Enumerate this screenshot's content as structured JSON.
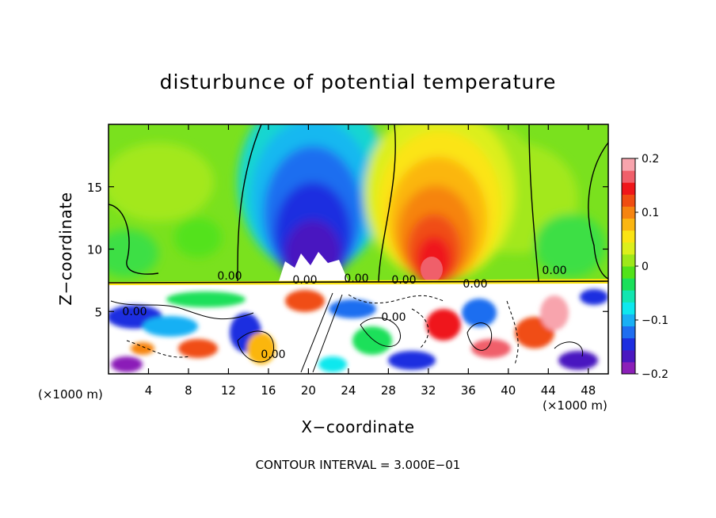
{
  "chart_data": {
    "type": "heatmap",
    "title": "disturbunce of potential temperature",
    "xlabel": "X−coordinate",
    "ylabel": "Z−coordinate",
    "x_unit": "(×1000 m)",
    "x_unit_right": "(×1000 m)",
    "footer": "CONTOUR INTERVAL = 3.000E−01",
    "xlim": [
      0,
      50
    ],
    "ylim": [
      0,
      20
    ],
    "xticks": [
      4,
      8,
      12,
      16,
      20,
      24,
      28,
      32,
      36,
      40,
      44,
      48
    ],
    "xtick_labels": [
      "4",
      "8",
      "12",
      "16",
      "20",
      "24",
      "28",
      "32",
      "36",
      "40",
      "44",
      "48"
    ],
    "yticks": [
      5,
      10,
      15
    ],
    "ytick_labels": [
      "5",
      "10",
      "15"
    ],
    "colorbar": {
      "range": [
        -0.2,
        0.2
      ],
      "tick_values": [
        0.2,
        0.1,
        0,
        -0.1,
        -0.2
      ],
      "tick_labels": [
        "0.2",
        "0.1",
        "0",
        "−0.1",
        "−0.2"
      ],
      "colors": [
        "#8b1fb8",
        "#4a17c0",
        "#1d2ee0",
        "#1f6ef0",
        "#19b0f4",
        "#0de8ee",
        "#12e6b0",
        "#1ae05a",
        "#52e21a",
        "#9ee81a",
        "#dcef1c",
        "#fbe413",
        "#fbb611",
        "#f68410",
        "#f04d12",
        "#ef161a",
        "#f05f6a",
        "#f8a4ad"
      ]
    },
    "contour_labels": [
      "0.00",
      "0.00",
      "0.00",
      "0.00",
      "0.00",
      "0.00",
      "0.00",
      "0.00",
      "0.00"
    ],
    "grid": false
  }
}
